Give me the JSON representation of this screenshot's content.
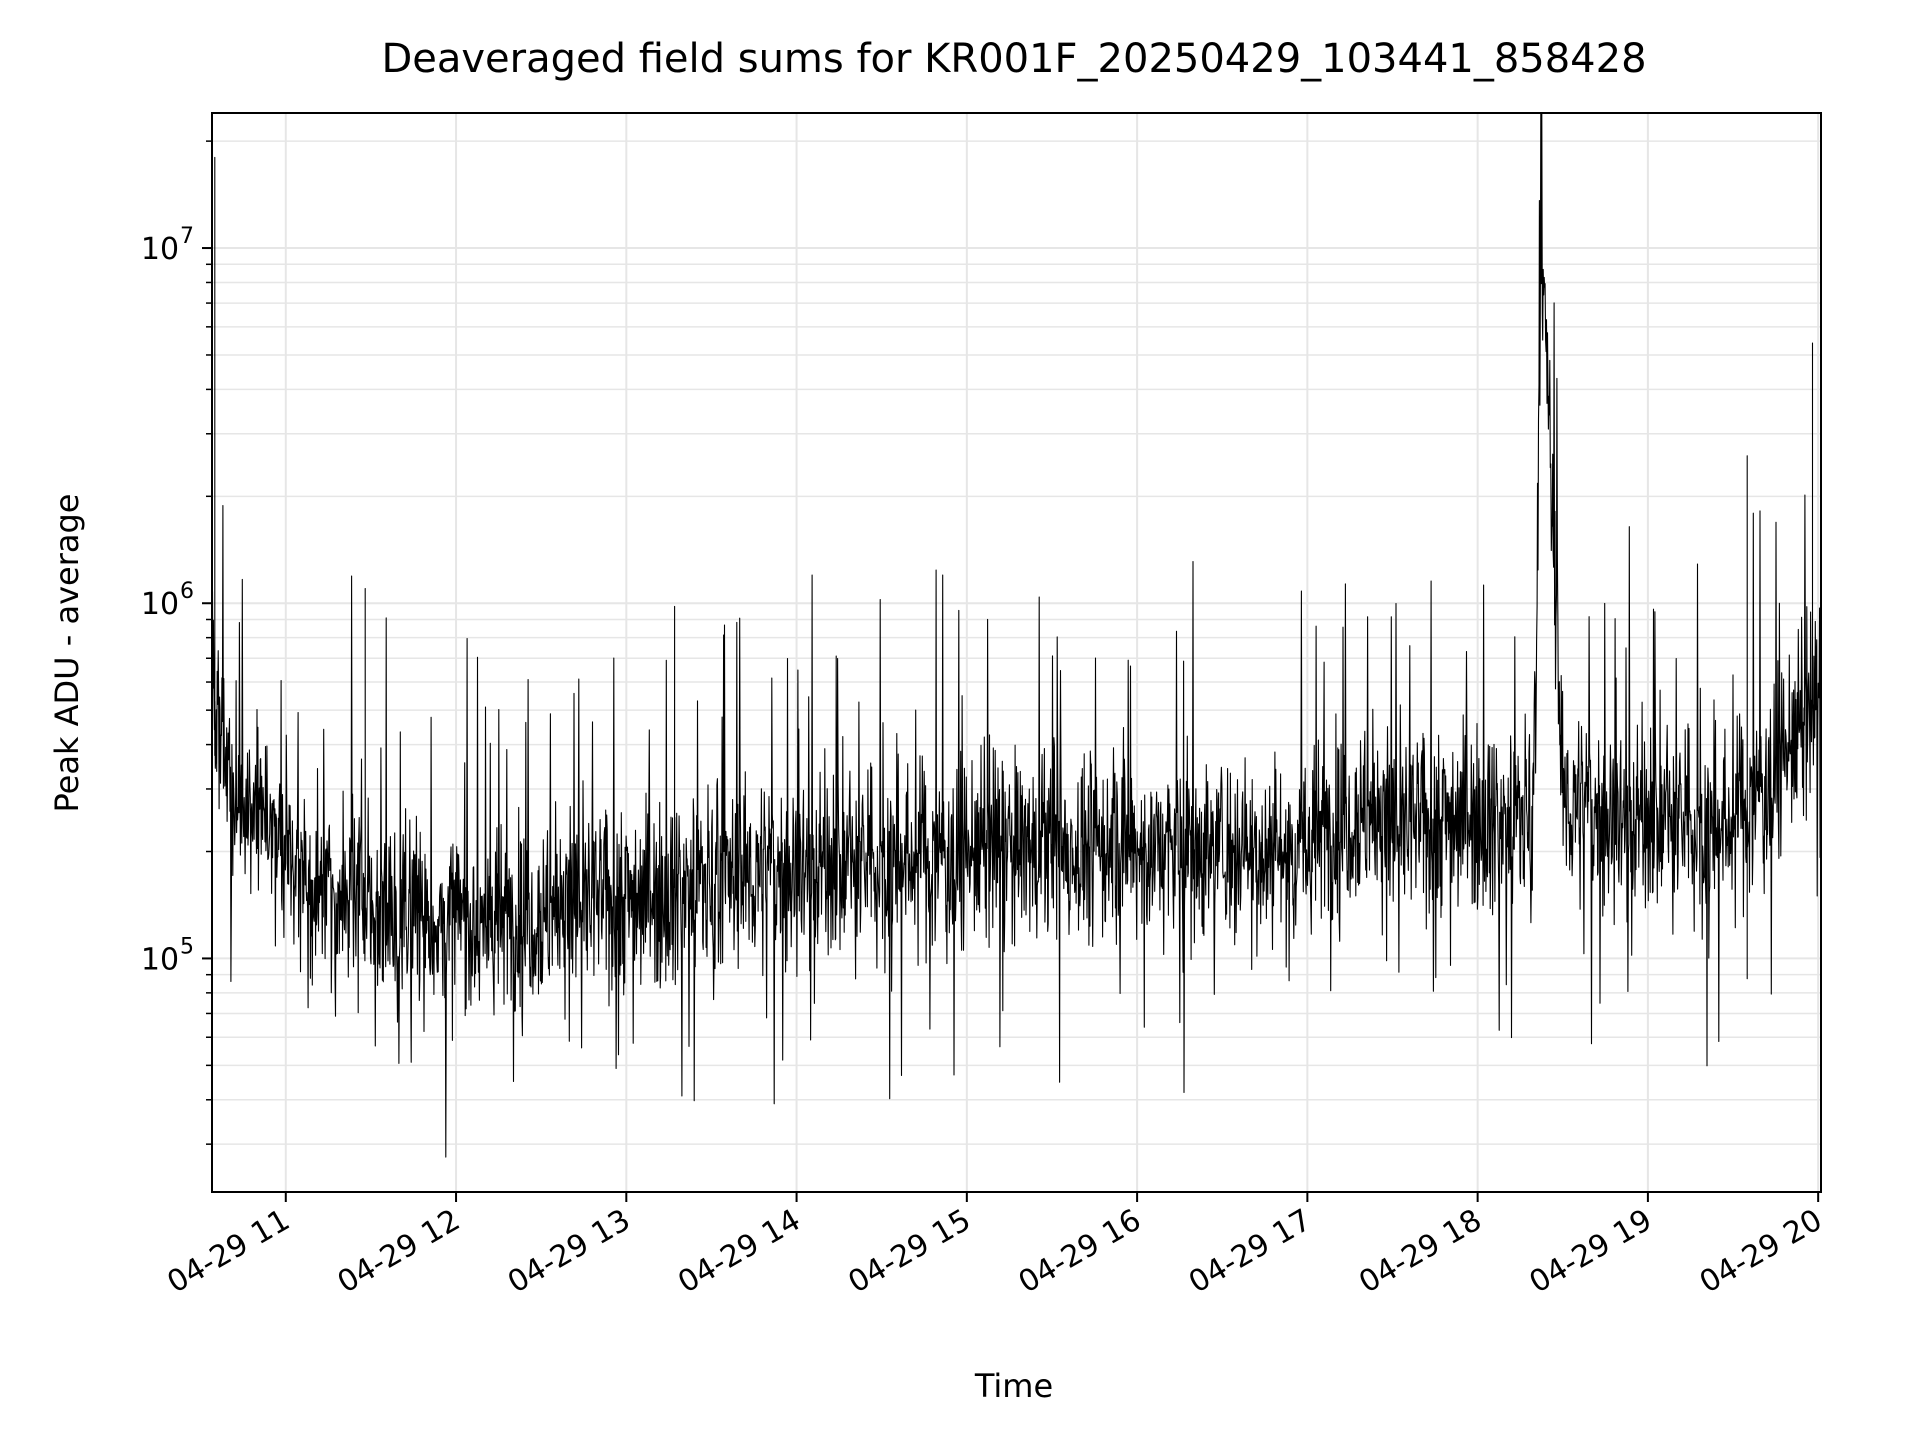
{
  "chart_data": {
    "type": "line",
    "title": "Deaveraged field sums for KR001F_20250429_103441_858428",
    "xlabel": "Time",
    "ylabel": "Peak ADU - average",
    "y_scale": "log",
    "grid": true,
    "grid_minor": true,
    "legend": "none",
    "line_color": "#000000",
    "x_range": [
      "2025-04-29 10:34",
      "2025-04-29 20:01"
    ],
    "ylim": [
      22000,
      24000000
    ],
    "x_ticks": [
      "04-29 11",
      "04-29 12",
      "04-29 13",
      "04-29 14",
      "04-29 15",
      "04-29 16",
      "04-29 17",
      "04-29 18",
      "04-29 19",
      "04-29 20"
    ],
    "y_ticks": [
      {
        "value": 100000,
        "base": "10",
        "exp": "5"
      },
      {
        "value": 1000000,
        "base": "10",
        "exp": "6"
      },
      {
        "value": 10000000,
        "base": "10",
        "exp": "7"
      }
    ],
    "series": [
      {
        "x": [
          "2025-04-29 10:34",
          "2025-04-29 10:35",
          "2025-04-29 10:36",
          "2025-04-29 10:40",
          "2025-04-29 10:45",
          "2025-04-29 10:50",
          "2025-04-29 10:55",
          "2025-04-29 11:00",
          "2025-04-29 11:05",
          "2025-04-29 11:10",
          "2025-04-29 11:15",
          "2025-04-29 11:20",
          "2025-04-29 11:25",
          "2025-04-29 11:28",
          "2025-04-29 11:30",
          "2025-04-29 11:35",
          "2025-04-29 11:40",
          "2025-04-29 11:45",
          "2025-04-29 11:50",
          "2025-04-29 11:55",
          "2025-04-29 12:00",
          "2025-04-29 12:10",
          "2025-04-29 12:20",
          "2025-04-29 12:30",
          "2025-04-29 12:40",
          "2025-04-29 12:50",
          "2025-04-29 13:00",
          "2025-04-29 13:10",
          "2025-04-29 13:17",
          "2025-04-29 13:20",
          "2025-04-29 13:30",
          "2025-04-29 13:40",
          "2025-04-29 13:50",
          "2025-04-29 14:00",
          "2025-04-29 14:10",
          "2025-04-29 14:20",
          "2025-04-29 14:30",
          "2025-04-29 14:40",
          "2025-04-29 14:50",
          "2025-04-29 15:00",
          "2025-04-29 15:10",
          "2025-04-29 15:20",
          "2025-04-29 15:30",
          "2025-04-29 15:40",
          "2025-04-29 15:50",
          "2025-04-29 16:00",
          "2025-04-29 16:10",
          "2025-04-29 16:20",
          "2025-04-29 16:30",
          "2025-04-29 16:40",
          "2025-04-29 16:50",
          "2025-04-29 17:00",
          "2025-04-29 17:10",
          "2025-04-29 17:15",
          "2025-04-29 17:20",
          "2025-04-29 17:30",
          "2025-04-29 17:40",
          "2025-04-29 17:50",
          "2025-04-29 18:00",
          "2025-04-29 18:10",
          "2025-04-29 18:15",
          "2025-04-29 18:20",
          "2025-04-29 18:22",
          "2025-04-29 18:24",
          "2025-04-29 18:30",
          "2025-04-29 18:40",
          "2025-04-29 18:50",
          "2025-04-29 19:00",
          "2025-04-29 19:10",
          "2025-04-29 19:20",
          "2025-04-29 19:30",
          "2025-04-29 19:35",
          "2025-04-29 19:40",
          "2025-04-29 19:45",
          "2025-04-29 19:50",
          "2025-04-29 19:55",
          "2025-04-29 19:58",
          "2025-04-29 20:00"
        ],
        "y": [
          700000,
          18000000,
          400000,
          300000,
          250000,
          260000,
          240000,
          230000,
          180000,
          150000,
          170000,
          140000,
          150000,
          1100000,
          140000,
          130000,
          135000,
          140000,
          130000,
          120000,
          130000,
          125000,
          130000,
          135000,
          140000,
          145000,
          150000,
          155000,
          980000,
          160000,
          165000,
          170000,
          175000,
          180000,
          185000,
          180000,
          185000,
          190000,
          195000,
          200000,
          205000,
          200000,
          205000,
          200000,
          210000,
          200000,
          205000,
          200000,
          210000,
          205000,
          200000,
          210000,
          240000,
          250000,
          260000,
          230000,
          240000,
          250000,
          260000,
          240000,
          250000,
          280000,
          6800000,
          6100000,
          280000,
          260000,
          250000,
          250000,
          240000,
          230000,
          240000,
          2600000,
          300000,
          350000,
          400000,
          450000,
          5400000,
          550000
        ]
      }
    ]
  }
}
